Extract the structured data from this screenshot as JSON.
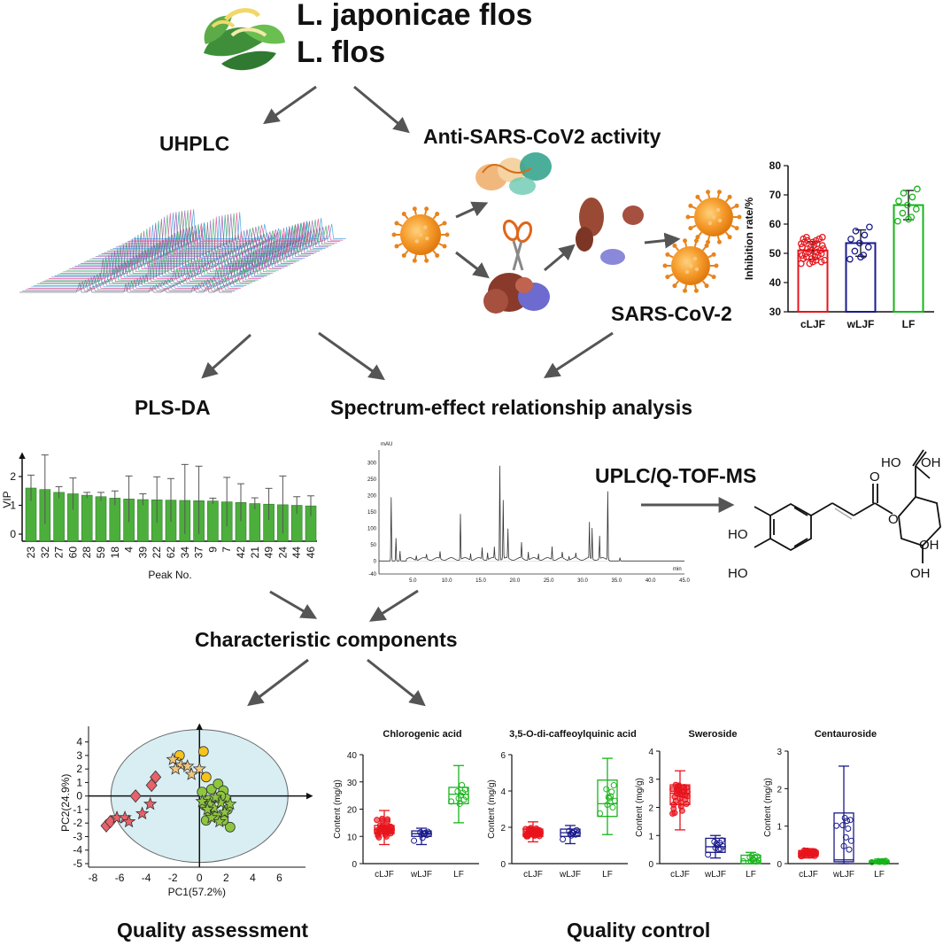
{
  "title": {
    "line1": "L. japonicae flos",
    "line2": "L. flos"
  },
  "labels": {
    "uhplc": "UHPLC",
    "anti_sars": "Anti-SARS-CoV2 activity",
    "sars_cov2": "SARS-CoV-2",
    "plsda": "PLS-DA",
    "spectrum_effect": "Spectrum-effect relationship analysis",
    "uplc_ms": "UPLC/Q-TOF-MS",
    "characteristic": "Characteristic components",
    "quality_assessment": "Quality assessment",
    "quality_control": "Quality control"
  },
  "chem": {
    "ho1": "HO",
    "oh1": "OH",
    "o1": "O",
    "o2": "O",
    "ho2": "HO",
    "ho3": "HO",
    "oh2": "OH",
    "oh3": "OH"
  },
  "colors": {
    "red": "#e8141c",
    "navy": "#1a1a8c",
    "green": "#18b41b",
    "bar_green": "#4caf3c",
    "ellipse": "#d8eef2"
  },
  "chart_data": [
    {
      "id": "inhibition",
      "type": "bar",
      "ylabel": "Inhibition rate/%",
      "ylim": [
        30,
        80
      ],
      "yticks": [
        30,
        40,
        50,
        60,
        70,
        80
      ],
      "categories": [
        "cLJF",
        "wLJF",
        "LF"
      ],
      "values": [
        51,
        53.5,
        66.5
      ],
      "err": [
        3,
        4.5,
        5
      ],
      "colors": [
        "#e8141c",
        "#1a1a8c",
        "#18b41b"
      ]
    },
    {
      "id": "vip",
      "type": "bar",
      "ylabel": "VIP",
      "xlabel": "Peak No.",
      "ylim": [
        0,
        2
      ],
      "yticks": [
        0,
        1,
        2
      ],
      "categories": [
        "23",
        "32",
        "27",
        "60",
        "28",
        "59",
        "18",
        "4",
        "39",
        "22",
        "62",
        "34",
        "37",
        "9",
        "7",
        "42",
        "21",
        "49",
        "24",
        "44",
        "46"
      ],
      "values": [
        1.6,
        1.55,
        1.45,
        1.4,
        1.35,
        1.3,
        1.25,
        1.22,
        1.2,
        1.19,
        1.18,
        1.17,
        1.16,
        1.15,
        1.12,
        1.1,
        1.06,
        1.04,
        1.02,
        1.0,
        0.98
      ],
      "err": [
        0.45,
        1.2,
        0.2,
        0.55,
        0.1,
        0.15,
        0.25,
        0.8,
        0.2,
        0.8,
        0.75,
        1.25,
        1.2,
        0.1,
        0.85,
        0.65,
        0.2,
        0.55,
        1.0,
        0.3,
        0.35
      ]
    },
    {
      "id": "chromatogram",
      "type": "line",
      "ylabel": "mAU",
      "xlabel": "min",
      "xlim": [
        0,
        45
      ],
      "ylim": [
        -40,
        340
      ],
      "xticks": [
        "0",
        "5.0",
        "10.0",
        "15.0",
        "20.0",
        "25.0",
        "30.0",
        "35.0",
        "40.0",
        "45.0"
      ],
      "yticks": [
        "-40",
        "0",
        "50",
        "100",
        "150",
        "200",
        "250",
        "300",
        "340"
      ],
      "peaks": [
        [
          1.8,
          195
        ],
        [
          2.5,
          70
        ],
        [
          3.1,
          30
        ],
        [
          5.5,
          14
        ],
        [
          7,
          14
        ],
        [
          9,
          22
        ],
        [
          12,
          140
        ],
        [
          13.5,
          20
        ],
        [
          15.2,
          35
        ],
        [
          16,
          22
        ],
        [
          17,
          35
        ],
        [
          17.8,
          290
        ],
        [
          18.3,
          180
        ],
        [
          19,
          90
        ],
        [
          21,
          48
        ],
        [
          22,
          25
        ],
        [
          23.5,
          18
        ],
        [
          25.5,
          40
        ],
        [
          27,
          18
        ],
        [
          28,
          12
        ],
        [
          29,
          15
        ],
        [
          31,
          110
        ],
        [
          31.4,
          95
        ],
        [
          32.5,
          70
        ],
        [
          33.7,
          210
        ],
        [
          35.5,
          10
        ]
      ]
    },
    {
      "id": "pca",
      "type": "scatter",
      "xlabel": "PC1(57.2%)",
      "ylabel": "PC2(24.9%)",
      "xlim": [
        -8,
        8
      ],
      "ylim": [
        -5,
        4.5
      ],
      "xticks": [
        -8,
        -6,
        -4,
        -2,
        0,
        2,
        4,
        6
      ],
      "yticks": [
        -5,
        -4,
        -3,
        -2,
        -1,
        0,
        1,
        2,
        3,
        4
      ],
      "series": [
        {
          "marker": "diamond",
          "color": "#e8626a",
          "points": [
            [
              -7.0,
              -2.2
            ],
            [
              -6.7,
              -1.9
            ],
            [
              -4.8,
              0.0
            ],
            [
              -3.6,
              0.8
            ],
            [
              -3.3,
              1.4
            ]
          ]
        },
        {
          "marker": "star",
          "color": "#e8626a",
          "points": [
            [
              -6.2,
              -1.6
            ],
            [
              -5.6,
              -1.6
            ],
            [
              -5.3,
              -1.9
            ],
            [
              -4.3,
              -1.3
            ],
            [
              -3.7,
              -0.6
            ]
          ]
        },
        {
          "marker": "circle",
          "color": "#f6c21c",
          "points": [
            [
              -1.5,
              3.0
            ],
            [
              0.3,
              3.3
            ],
            [
              0.5,
              1.4
            ]
          ]
        },
        {
          "marker": "star",
          "color": "#f3c57a",
          "points": [
            [
              -2.0,
              2.7
            ],
            [
              -1.4,
              2.3
            ],
            [
              -1.8,
              2.0
            ],
            [
              -0.9,
              2.2
            ],
            [
              -0.6,
              1.6
            ],
            [
              0.0,
              2.0
            ]
          ]
        },
        {
          "marker": "circle",
          "color": "#8dc63f",
          "points": [
            [
              0.2,
              0.3
            ],
            [
              0.7,
              -0.3
            ],
            [
              0.9,
              0.5
            ],
            [
              1.4,
              0.9
            ],
            [
              1.8,
              0.4
            ],
            [
              2.0,
              -0.2
            ],
            [
              0.4,
              -0.7
            ],
            [
              0.8,
              -1.2
            ],
            [
              1.3,
              -1.5
            ],
            [
              2.1,
              -1.0
            ],
            [
              2.3,
              -2.3
            ],
            [
              1.6,
              0.0
            ],
            [
              0.5,
              -1.8
            ],
            [
              1.8,
              -1.8
            ]
          ]
        },
        {
          "marker": "star",
          "color": "#8dc63f",
          "points": [
            [
              0.2,
              -0.4
            ],
            [
              0.8,
              -0.6
            ],
            [
              1.1,
              -0.9
            ],
            [
              1.6,
              -0.5
            ],
            [
              1.9,
              -1.2
            ],
            [
              2.3,
              -0.6
            ],
            [
              0.9,
              -1.6
            ],
            [
              1.5,
              -1.9
            ],
            [
              1.2,
              -0.1
            ],
            [
              0.6,
              -1.0
            ]
          ]
        }
      ]
    },
    {
      "id": "chlorogenic",
      "type": "box",
      "title": "Chlorogenic acid",
      "ylabel": "Content (mg/g)",
      "ylim": [
        0,
        40
      ],
      "yticks": [
        0,
        10,
        20,
        30,
        40
      ],
      "categories": [
        "cLJF",
        "wLJF",
        "LF"
      ],
      "boxes": [
        [
          7,
          11,
          12.5,
          14,
          19.5
        ],
        [
          7,
          10,
          11,
          12,
          13
        ],
        [
          15,
          22,
          25.5,
          28,
          36
        ]
      ],
      "colors": [
        "#e8141c",
        "#1a1a8c",
        "#18b41b"
      ]
    },
    {
      "id": "dicaffeoyl",
      "type": "box",
      "title": "3,5-O-di-caffeoylquinic acid",
      "ylabel": "Content (mg/g)",
      "ylim": [
        0,
        6
      ],
      "yticks": [
        0,
        2,
        4,
        6
      ],
      "categories": [
        "cLJF",
        "wLJF",
        "LF"
      ],
      "boxes": [
        [
          1.2,
          1.5,
          1.7,
          1.9,
          2.3
        ],
        [
          1.1,
          1.5,
          1.7,
          1.9,
          2.1
        ],
        [
          1.6,
          2.6,
          3.3,
          4.6,
          5.8
        ]
      ],
      "colors": [
        "#e8141c",
        "#1a1a8c",
        "#18b41b"
      ]
    },
    {
      "id": "sweroside",
      "type": "box",
      "title": "Sweroside",
      "ylabel": "Content (mg/g)",
      "ylim": [
        0,
        4
      ],
      "yticks": [
        0,
        1,
        2,
        3,
        4
      ],
      "categories": [
        "cLJF",
        "wLJF",
        "LF"
      ],
      "boxes": [
        [
          1.2,
          2.1,
          2.5,
          2.8,
          3.3
        ],
        [
          0.2,
          0.4,
          0.6,
          0.9,
          1.0
        ],
        [
          0.0,
          0.0,
          0.1,
          0.3,
          0.4
        ]
      ],
      "colors": [
        "#e8141c",
        "#1a1a8c",
        "#18b41b"
      ]
    },
    {
      "id": "centauroside",
      "type": "box",
      "title": "Centauroside",
      "ylabel": "Content (mg/g)",
      "ylim": [
        0,
        3
      ],
      "yticks": [
        0,
        1,
        2,
        3
      ],
      "categories": [
        "cLJF",
        "wLJF",
        "LF"
      ],
      "boxes": [
        [
          0.15,
          0.2,
          0.28,
          0.35,
          0.4
        ],
        [
          0.0,
          0.05,
          0.1,
          1.35,
          2.6
        ],
        [
          0.0,
          0.03,
          0.06,
          0.08,
          0.12
        ]
      ],
      "colors": [
        "#e8141c",
        "#1a1a8c",
        "#18b41b"
      ]
    }
  ]
}
